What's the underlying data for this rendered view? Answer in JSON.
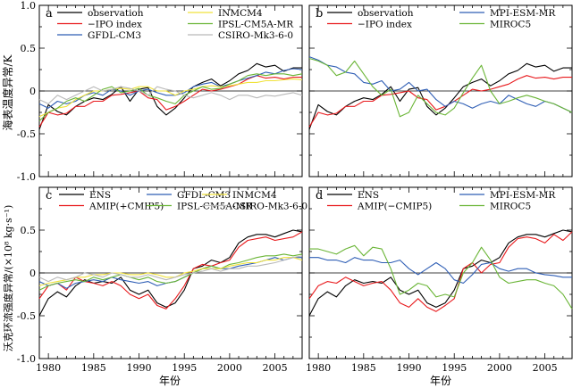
{
  "figure": {
    "ylabel_top": "海表温度异常/K",
    "ylabel_bottom": "沃克环流强度异常/(×10⁸ kg·s⁻¹)",
    "xlabel": "年份"
  },
  "chart_data": [
    {
      "panel": "a",
      "type": "line",
      "x": [
        1979,
        1980,
        1981,
        1982,
        1983,
        1984,
        1985,
        1986,
        1987,
        1988,
        1989,
        1990,
        1991,
        1992,
        1993,
        1994,
        1995,
        1996,
        1997,
        1998,
        1999,
        2000,
        2001,
        2002,
        2003,
        2004,
        2005,
        2006,
        2007,
        2008
      ],
      "xlim": [
        1979,
        2008
      ],
      "ylim": [
        -1.0,
        1.0
      ],
      "xticks": [
        1980,
        1985,
        1990,
        1995,
        2000,
        2005
      ],
      "yticks": [
        -1.0,
        -0.5,
        0,
        0.5,
        1.0
      ],
      "ytick_labels": [
        "-1.0",
        "-0.5",
        "0",
        "0.5",
        "1.0"
      ],
      "legend_ncol": 2,
      "series": [
        {
          "name": "observation",
          "color": "#000000",
          "values": [
            -0.45,
            -0.16,
            -0.24,
            -0.28,
            -0.18,
            -0.12,
            -0.08,
            -0.1,
            -0.04,
            0.05,
            -0.12,
            0.02,
            0.04,
            -0.18,
            -0.28,
            -0.2,
            -0.08,
            0.05,
            0.1,
            0.14,
            0.06,
            0.12,
            0.2,
            0.24,
            0.32,
            0.28,
            0.3,
            0.23,
            0.27,
            0.27
          ]
        },
        {
          "name": "−IPO index",
          "color": "#e8191c",
          "values": [
            -0.42,
            -0.25,
            -0.28,
            -0.26,
            -0.18,
            -0.18,
            -0.12,
            -0.12,
            -0.05,
            -0.04,
            -0.02,
            0.0,
            -0.08,
            -0.1,
            -0.22,
            -0.18,
            -0.12,
            -0.05,
            0.02,
            0.0,
            0.02,
            0.05,
            0.08,
            0.14,
            0.18,
            0.15,
            0.16,
            0.14,
            0.16,
            0.16
          ]
        },
        {
          "name": "GFDL-CM3",
          "color": "#2f5eb5",
          "values": [
            -0.15,
            -0.2,
            -0.12,
            -0.15,
            -0.12,
            -0.05,
            -0.02,
            -0.05,
            0.02,
            0.0,
            -0.05,
            0.0,
            0.02,
            -0.02,
            -0.05,
            -0.05,
            -0.02,
            0.05,
            0.08,
            0.1,
            0.05,
            0.08,
            0.12,
            0.15,
            0.18,
            0.22,
            0.2,
            0.24,
            0.26,
            0.25
          ]
        },
        {
          "name": "INMCM4",
          "color": "#f0e23a",
          "values": [
            -0.3,
            -0.25,
            -0.2,
            -0.18,
            -0.1,
            -0.05,
            0.0,
            0.0,
            0.02,
            0.03,
            0.02,
            0.05,
            0.05,
            0.0,
            0.0,
            -0.05,
            0.0,
            0.02,
            0.05,
            0.06,
            0.05,
            0.06,
            0.08,
            0.1,
            0.1,
            0.12,
            0.12,
            0.13,
            0.14,
            0.13
          ]
        },
        {
          "name": "IPSL-CM5A-MR",
          "color": "#6ab536",
          "values": [
            -0.35,
            -0.25,
            -0.2,
            -0.12,
            -0.08,
            -0.12,
            -0.05,
            0.02,
            0.05,
            -0.02,
            0.0,
            0.03,
            -0.05,
            -0.08,
            -0.12,
            -0.15,
            -0.05,
            0.0,
            0.05,
            0.02,
            0.03,
            0.08,
            0.12,
            0.18,
            0.2,
            0.18,
            0.2,
            0.2,
            0.18,
            0.2
          ]
        },
        {
          "name": "CSIRO-Mk3-6-0",
          "color": "#b9b9b9",
          "values": [
            -0.1,
            -0.15,
            -0.05,
            -0.1,
            -0.05,
            0.0,
            0.05,
            0.0,
            0.02,
            0.05,
            0.03,
            0.0,
            -0.05,
            0.05,
            0.02,
            0.0,
            -0.05,
            -0.08,
            -0.05,
            -0.02,
            -0.05,
            -0.1,
            -0.05,
            -0.05,
            -0.08,
            -0.05,
            -0.06,
            -0.04,
            -0.02,
            -0.05
          ]
        }
      ]
    },
    {
      "panel": "b",
      "type": "line",
      "x": [
        1979,
        1980,
        1981,
        1982,
        1983,
        1984,
        1985,
        1986,
        1987,
        1988,
        1989,
        1990,
        1991,
        1992,
        1993,
        1994,
        1995,
        1996,
        1997,
        1998,
        1999,
        2000,
        2001,
        2002,
        2003,
        2004,
        2005,
        2006,
        2007,
        2008
      ],
      "xlim": [
        1979,
        2008
      ],
      "ylim": [
        -1.0,
        1.0
      ],
      "xticks": [
        1980,
        1985,
        1990,
        1995,
        2000,
        2005
      ],
      "yticks": [
        -1.0,
        -0.5,
        0,
        0.5,
        1.0
      ],
      "legend_ncol": 2,
      "series": [
        {
          "name": "observation",
          "color": "#000000",
          "values": [
            -0.45,
            -0.16,
            -0.24,
            -0.28,
            -0.18,
            -0.12,
            -0.08,
            -0.1,
            -0.04,
            0.05,
            -0.12,
            0.02,
            0.04,
            -0.18,
            -0.28,
            -0.2,
            -0.08,
            0.05,
            0.1,
            0.14,
            0.06,
            0.12,
            0.2,
            0.24,
            0.32,
            0.28,
            0.3,
            0.23,
            0.27,
            0.27
          ]
        },
        {
          "name": "−IPO index",
          "color": "#e8191c",
          "values": [
            -0.42,
            -0.25,
            -0.28,
            -0.26,
            -0.18,
            -0.18,
            -0.12,
            -0.12,
            -0.05,
            -0.04,
            -0.02,
            0.0,
            -0.08,
            -0.1,
            -0.22,
            -0.18,
            -0.12,
            -0.05,
            0.02,
            0.0,
            0.02,
            0.05,
            0.08,
            0.14,
            0.18,
            0.15,
            0.16,
            0.14,
            0.16,
            0.16
          ]
        },
        {
          "name": "MPI-ESM-MR",
          "color": "#2f5eb5",
          "values": [
            0.4,
            0.36,
            0.3,
            0.28,
            0.22,
            0.2,
            0.1,
            0.08,
            0.12,
            0.0,
            0.02,
            0.1,
            0.0,
            0.02,
            -0.1,
            -0.18,
            -0.12,
            -0.15,
            -0.2,
            -0.15,
            -0.12,
            -0.15,
            -0.05,
            -0.1,
            -0.15,
            -0.18,
            -0.12,
            -0.15,
            -0.2,
            -0.25
          ]
        },
        {
          "name": "MIROC5",
          "color": "#6ab536",
          "values": [
            0.38,
            0.35,
            0.3,
            0.18,
            0.22,
            0.35,
            0.2,
            0.05,
            -0.05,
            0.02,
            -0.3,
            -0.25,
            -0.05,
            -0.15,
            -0.25,
            -0.28,
            -0.2,
            -0.02,
            0.15,
            0.3,
            0.0,
            -0.15,
            -0.12,
            -0.08,
            -0.05,
            -0.08,
            -0.12,
            -0.15,
            -0.2,
            -0.25
          ]
        }
      ]
    },
    {
      "panel": "c",
      "type": "line",
      "x": [
        1979,
        1980,
        1981,
        1982,
        1983,
        1984,
        1985,
        1986,
        1987,
        1988,
        1989,
        1990,
        1991,
        1992,
        1993,
        1994,
        1995,
        1996,
        1997,
        1998,
        1999,
        2000,
        2001,
        2002,
        2003,
        2004,
        2005,
        2006,
        2007,
        2008
      ],
      "xlim": [
        1979,
        2008
      ],
      "ylim": [
        -1.0,
        1.0
      ],
      "xticks": [
        1980,
        1985,
        1990,
        1995,
        2000,
        2005
      ],
      "yticks": [
        -1.0,
        -0.5,
        0,
        0.5
      ],
      "legend_ncol": 3,
      "series": [
        {
          "name": "ENS",
          "color": "#000000",
          "values": [
            -0.5,
            -0.3,
            -0.22,
            -0.28,
            -0.15,
            -0.08,
            -0.12,
            -0.1,
            -0.12,
            -0.05,
            -0.2,
            -0.25,
            -0.2,
            -0.35,
            -0.4,
            -0.35,
            -0.2,
            0.05,
            0.08,
            0.15,
            0.12,
            0.18,
            0.35,
            0.42,
            0.45,
            0.45,
            0.42,
            0.46,
            0.5,
            0.48
          ]
        },
        {
          "name": "AMIP(+CMIP5)",
          "color": "#e8191c",
          "values": [
            -0.3,
            -0.15,
            -0.12,
            -0.2,
            -0.05,
            -0.1,
            -0.12,
            -0.15,
            -0.1,
            -0.15,
            -0.25,
            -0.3,
            -0.25,
            -0.38,
            -0.42,
            -0.3,
            -0.15,
            0.05,
            0.1,
            0.08,
            0.12,
            0.15,
            0.3,
            0.38,
            0.4,
            0.42,
            0.38,
            0.4,
            0.42,
            0.48
          ]
        },
        {
          "name": "GFDL-CM3",
          "color": "#2f5eb5",
          "values": [
            -0.1,
            -0.15,
            -0.12,
            -0.18,
            -0.12,
            -0.1,
            -0.08,
            -0.1,
            -0.05,
            -0.08,
            -0.1,
            -0.12,
            -0.1,
            -0.15,
            -0.12,
            -0.1,
            -0.05,
            0.0,
            0.05,
            0.08,
            0.05,
            0.05,
            0.08,
            0.1,
            0.12,
            0.15,
            0.18,
            0.15,
            0.18,
            0.18
          ]
        },
        {
          "name": "IPSL-CM5A-MR",
          "color": "#6ab536",
          "values": [
            -0.2,
            -0.15,
            -0.12,
            -0.1,
            -0.08,
            -0.1,
            -0.05,
            -0.08,
            -0.05,
            -0.02,
            -0.05,
            -0.08,
            -0.05,
            -0.1,
            -0.12,
            -0.1,
            -0.05,
            0.0,
            0.05,
            0.08,
            0.05,
            0.1,
            0.12,
            0.15,
            0.18,
            0.2,
            0.2,
            0.22,
            0.2,
            0.22
          ]
        },
        {
          "name": "INMCM4",
          "color": "#f0e23a",
          "values": [
            -0.15,
            -0.12,
            -0.1,
            -0.08,
            -0.05,
            -0.05,
            -0.02,
            -0.02,
            0.0,
            0.0,
            -0.02,
            -0.02,
            0.0,
            -0.02,
            -0.05,
            -0.05,
            0.0,
            0.02,
            0.05,
            0.05,
            0.05,
            0.08,
            0.1,
            0.12,
            0.12,
            0.15,
            0.15,
            0.18,
            0.18,
            0.15
          ]
        },
        {
          "name": "CSIRO-Mk3-6-0",
          "color": "#b9b9b9",
          "values": [
            -0.05,
            -0.1,
            -0.05,
            -0.08,
            -0.05,
            0.0,
            -0.02,
            -0.05,
            0.0,
            -0.02,
            -0.05,
            -0.05,
            -0.02,
            -0.05,
            -0.08,
            -0.05,
            -0.02,
            0.0,
            0.02,
            0.05,
            0.02,
            0.05,
            0.05,
            0.08,
            0.08,
            0.1,
            0.12,
            0.15,
            0.18,
            0.2
          ]
        }
      ]
    },
    {
      "panel": "d",
      "type": "line",
      "x": [
        1979,
        1980,
        1981,
        1982,
        1983,
        1984,
        1985,
        1986,
        1987,
        1988,
        1989,
        1990,
        1991,
        1992,
        1993,
        1994,
        1995,
        1996,
        1997,
        1998,
        1999,
        2000,
        2001,
        2002,
        2003,
        2004,
        2005,
        2006,
        2007,
        2008
      ],
      "xlim": [
        1979,
        2008
      ],
      "ylim": [
        -1.0,
        1.0
      ],
      "xticks": [
        1980,
        1985,
        1990,
        1995,
        2000,
        2005
      ],
      "yticks": [
        -1.0,
        -0.5,
        0,
        0.5
      ],
      "legend_ncol": 2,
      "series": [
        {
          "name": "ENS",
          "color": "#000000",
          "values": [
            -0.5,
            -0.3,
            -0.22,
            -0.28,
            -0.15,
            -0.08,
            -0.12,
            -0.1,
            -0.12,
            -0.05,
            -0.2,
            -0.25,
            -0.2,
            -0.35,
            -0.4,
            -0.35,
            -0.2,
            0.05,
            0.08,
            0.15,
            0.12,
            0.18,
            0.35,
            0.42,
            0.45,
            0.45,
            0.42,
            0.46,
            0.5,
            0.48
          ]
        },
        {
          "name": "AMIP(−CMIP5)",
          "color": "#e8191c",
          "values": [
            -0.3,
            -0.15,
            -0.1,
            -0.12,
            -0.05,
            -0.1,
            -0.15,
            -0.12,
            -0.1,
            -0.2,
            -0.35,
            -0.4,
            -0.3,
            -0.4,
            -0.45,
            -0.38,
            -0.3,
            0.05,
            0.12,
            0.0,
            0.1,
            0.12,
            0.3,
            0.4,
            0.42,
            0.4,
            0.35,
            0.45,
            0.38,
            0.48
          ]
        },
        {
          "name": "MPI-ESM-MR",
          "color": "#2f5eb5",
          "values": [
            0.18,
            0.18,
            0.15,
            0.15,
            0.12,
            0.18,
            0.15,
            0.15,
            0.12,
            0.12,
            0.15,
            0.05,
            -0.02,
            0.05,
            0.12,
            0.05,
            -0.08,
            -0.12,
            -0.02,
            0.1,
            0.12,
            0.05,
            0.02,
            0.05,
            0.05,
            0.0,
            -0.02,
            -0.03,
            -0.05,
            -0.05
          ]
        },
        {
          "name": "MIROC5",
          "color": "#6ab536",
          "values": [
            0.28,
            0.28,
            0.25,
            0.22,
            0.28,
            0.32,
            0.2,
            0.3,
            0.28,
            0.05,
            -0.25,
            -0.2,
            -0.12,
            -0.15,
            -0.28,
            -0.25,
            -0.28,
            0.0,
            0.12,
            0.3,
            0.15,
            -0.05,
            -0.12,
            -0.1,
            -0.08,
            -0.08,
            -0.12,
            -0.15,
            -0.25,
            -0.42
          ]
        }
      ]
    }
  ]
}
